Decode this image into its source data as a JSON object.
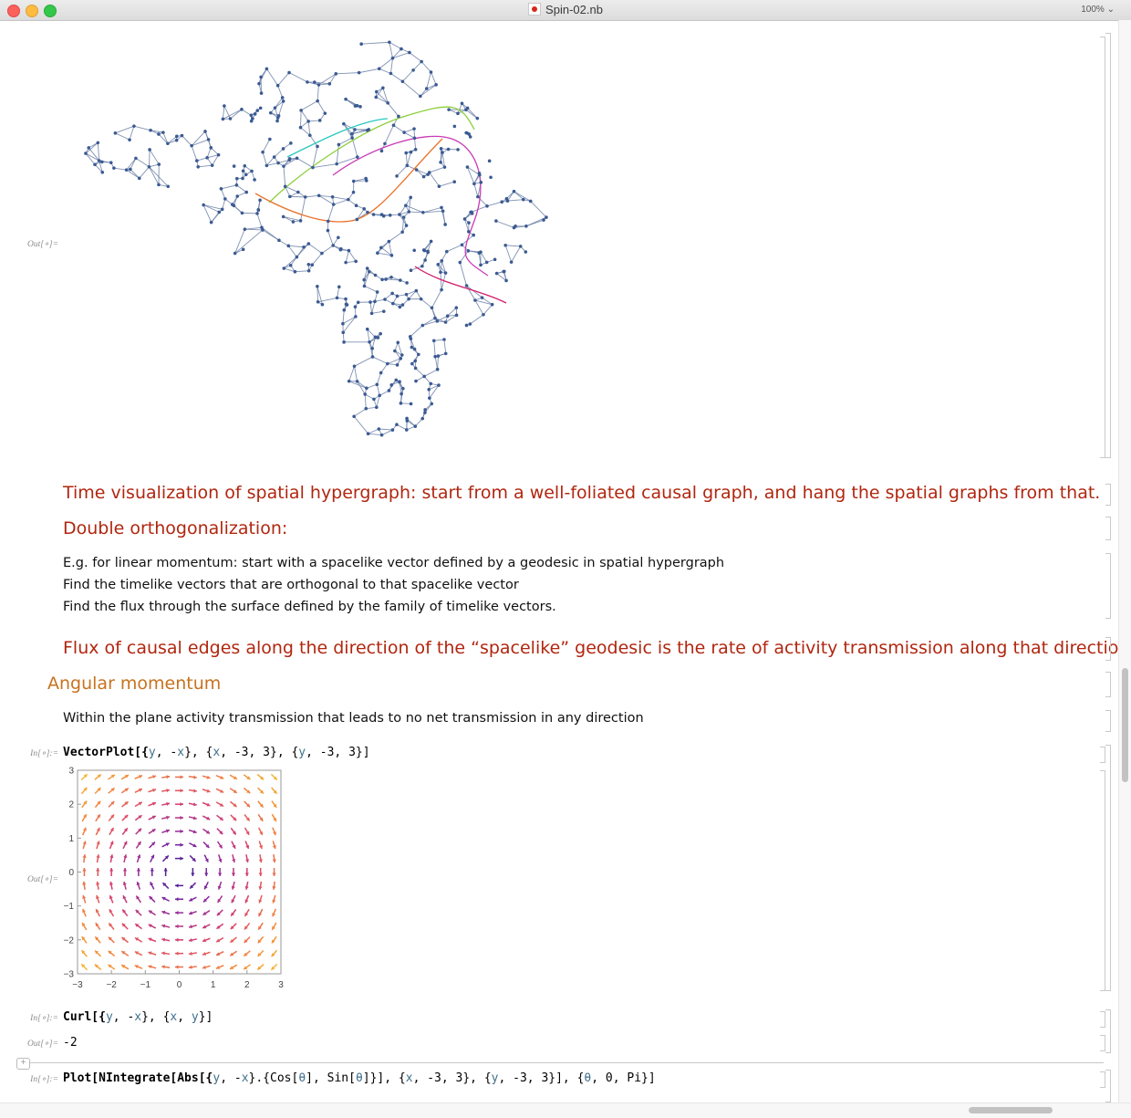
{
  "window": {
    "title": "Spin-02.nb",
    "zoom": "100%"
  },
  "labels": {
    "out": "Out[∘]=",
    "in": "In[∘]:="
  },
  "cells": {
    "time_visualization": "Time visualization of spatial hypergraph: start from a well-foliated causal graph, and hang the spatial graphs from that.",
    "double_orthogonalization": "Double orthogonalization:",
    "linear_momentum_lines": [
      "E.g. for linear momentum: start with a spacelike vector defined by a geodesic in spatial hypergraph",
      "Find the timelike vectors that are orthogonal to that spacelike vector",
      "Find the flux through the surface defined by the family of timelike vectors."
    ],
    "flux_statement": "Flux of causal edges along the direction of the “spacelike” geodesic is the rate of activity transmission along that direction",
    "angular_momentum": "Angular momentum",
    "plane_text": "Within the plane activity transmission that leads to no net transmission in any direction",
    "curl_output": "-2"
  },
  "code": {
    "vectorplot": [
      "VectorPlot[{",
      "y",
      ", -",
      "x",
      "}, {",
      "x",
      ", -3, 3}, {",
      "y",
      ", -3, 3}]"
    ],
    "curl": [
      "Curl[{",
      "y",
      ", -",
      "x",
      "}, {",
      "x",
      ", ",
      "y",
      "}]"
    ],
    "plot": [
      "Plot[NIntegrate[Abs[{",
      "y",
      ", -",
      "x",
      "}.{Cos[",
      "θ",
      "], Sin[",
      "θ",
      "]}], {",
      "x",
      ", -3, 3}, {",
      "y",
      ", -3, 3}], {",
      "θ",
      ", 0, Pi}]"
    ]
  },
  "chart_data": {
    "type": "vector",
    "function": [
      "y",
      "-x"
    ],
    "xlim": [
      -3,
      3
    ],
    "ylim": [
      -3,
      3
    ],
    "x_ticks": [
      "−3",
      "−2",
      "−1",
      "0",
      "1",
      "2",
      "3"
    ],
    "y_ticks": [
      "3",
      "2",
      "1",
      "0",
      "−1",
      "−2",
      "−3"
    ],
    "colormap": [
      "#2e1a8e",
      "#8b2a9e",
      "#d9406e",
      "#f2893a",
      "#f7c33a"
    ]
  },
  "colors": {
    "heading_red": "#b1260f",
    "section_orange": "#c8721e",
    "graph_node": "#3b5a92",
    "graph_edge": "#6b7fa6"
  }
}
